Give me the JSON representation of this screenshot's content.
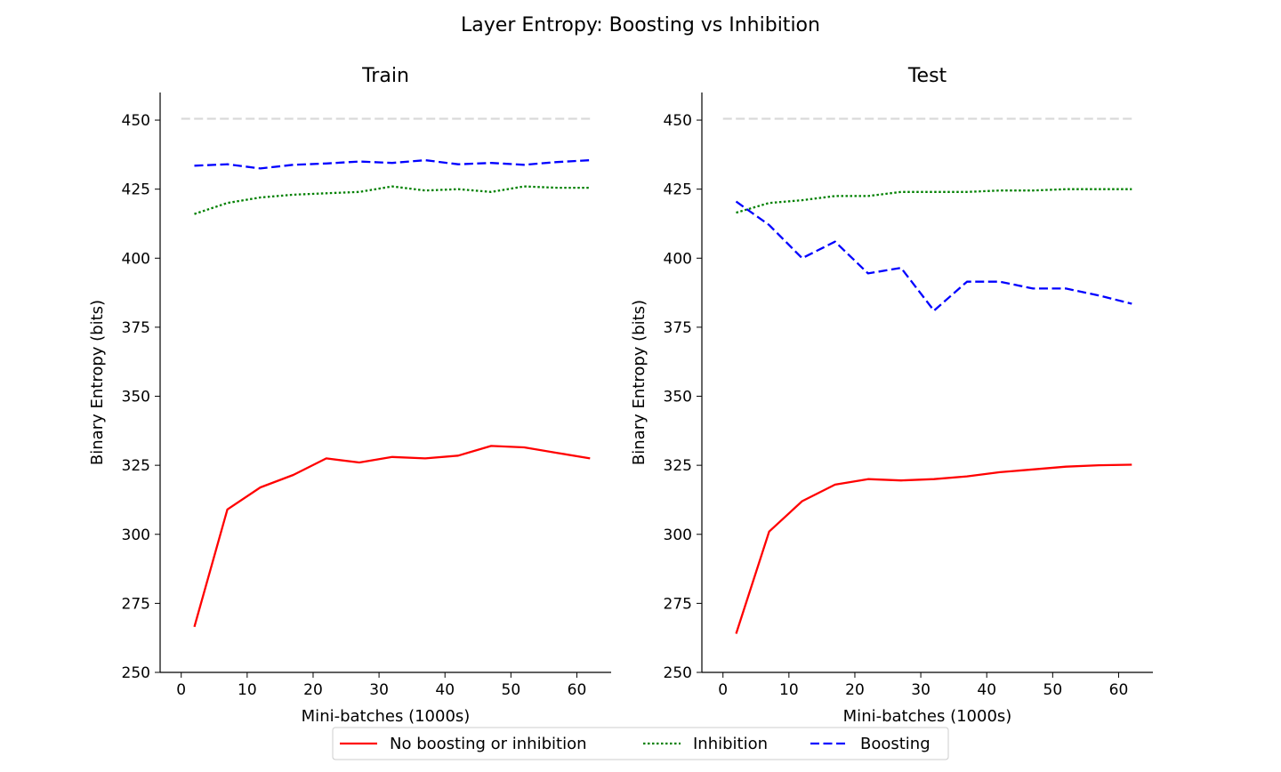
{
  "figure": {
    "title": "Layer Entropy: Boosting vs Inhibition"
  },
  "chart_data": [
    {
      "type": "line",
      "title": "Train",
      "xlabel": "Mini-batches (1000s)",
      "ylabel": "Binary Entropy (bits)",
      "xlim": [
        -3.2,
        65.2
      ],
      "ylim": [
        250,
        460
      ],
      "xticks": [
        0,
        10,
        20,
        30,
        40,
        50,
        60
      ],
      "yticks": [
        250,
        275,
        300,
        325,
        350,
        375,
        400,
        425,
        450
      ],
      "grid": false,
      "x": [
        2,
        7,
        12,
        17,
        22,
        27,
        32,
        37,
        42,
        47,
        52,
        57,
        62
      ],
      "reference": {
        "y": 450.5,
        "x": [
          0,
          62
        ],
        "color": "#d9d9d9",
        "style": "dashed"
      },
      "series": [
        {
          "name": "No boosting or inhibition",
          "color": "#ff0000",
          "style": "solid",
          "values": [
            266.5,
            309,
            317,
            321.5,
            327.5,
            326,
            328,
            327.5,
            328.5,
            332,
            331.5,
            329.5,
            327.5
          ]
        },
        {
          "name": "Inhibition",
          "color": "#008000",
          "style": "dotted",
          "values": [
            416,
            420,
            422,
            423,
            423.5,
            424,
            426,
            424.5,
            425,
            424,
            426,
            425.5,
            425.5
          ]
        },
        {
          "name": "Boosting",
          "color": "#0000ff",
          "style": "dashed",
          "values": [
            433.5,
            434,
            432.5,
            433.8,
            434.3,
            435,
            434.5,
            435.5,
            434,
            434.5,
            433.8,
            434.8,
            435.5
          ]
        }
      ]
    },
    {
      "type": "line",
      "title": "Test",
      "xlabel": "Mini-batches (1000s)",
      "ylabel": "Binary Entropy (bits)",
      "xlim": [
        -3.2,
        65.2
      ],
      "ylim": [
        250,
        460
      ],
      "xticks": [
        0,
        10,
        20,
        30,
        40,
        50,
        60
      ],
      "yticks": [
        250,
        275,
        300,
        325,
        350,
        375,
        400,
        425,
        450
      ],
      "grid": false,
      "x": [
        2,
        7,
        12,
        17,
        22,
        27,
        32,
        37,
        42,
        47,
        52,
        57,
        62
      ],
      "reference": {
        "y": 450.5,
        "x": [
          0,
          62
        ],
        "color": "#d9d9d9",
        "style": "dashed"
      },
      "series": [
        {
          "name": "No boosting or inhibition",
          "color": "#ff0000",
          "style": "solid",
          "values": [
            264,
            301,
            312,
            318,
            320,
            319.5,
            320,
            321,
            322.5,
            323.5,
            324.5,
            325,
            325.2
          ]
        },
        {
          "name": "Inhibition",
          "color": "#008000",
          "style": "dotted",
          "values": [
            416.5,
            420,
            421,
            422.5,
            422.5,
            424,
            424,
            424,
            424.5,
            424.5,
            425,
            425,
            425
          ]
        },
        {
          "name": "Boosting",
          "color": "#0000ff",
          "style": "dashed",
          "values": [
            420.5,
            412,
            400,
            406,
            394.5,
            396.5,
            381,
            391.5,
            391.5,
            389,
            389,
            386.5,
            383.5
          ]
        }
      ]
    }
  ],
  "legend": {
    "placement": "bottom-center",
    "items": [
      {
        "label": "No boosting or inhibition",
        "color": "#ff0000",
        "style": "solid"
      },
      {
        "label": "Inhibition",
        "color": "#008000",
        "style": "dotted"
      },
      {
        "label": "Boosting",
        "color": "#0000ff",
        "style": "dashed"
      }
    ]
  }
}
